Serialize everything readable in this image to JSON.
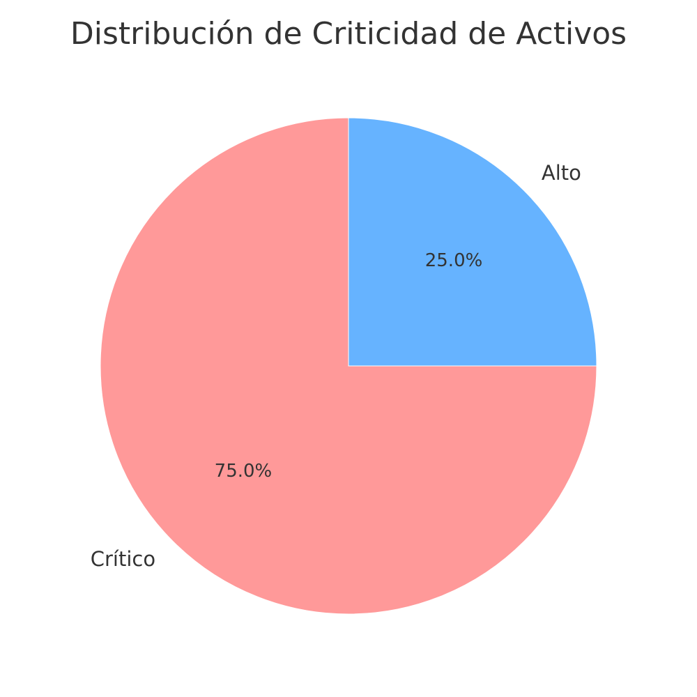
{
  "chart_data": {
    "type": "pie",
    "title": "Distribución de Criticidad de Activos",
    "slices": [
      {
        "label": "Alto",
        "value": 25.0,
        "pct_label": "25.0%",
        "color": "#66b3ff"
      },
      {
        "label": "Crítico",
        "value": 75.0,
        "pct_label": "75.0%",
        "color": "#ff9999"
      }
    ],
    "start_angle_deg": 90,
    "direction": "clockwise",
    "edge_color": "#ffffff"
  }
}
